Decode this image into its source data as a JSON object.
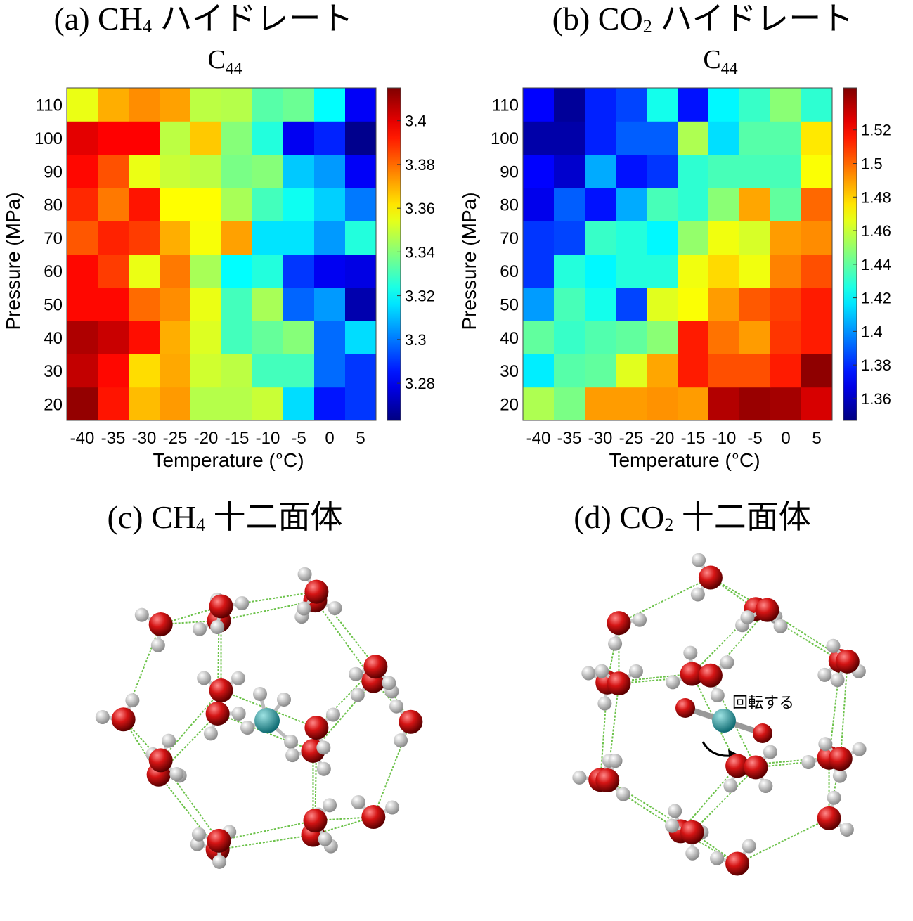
{
  "panels": {
    "a": {
      "title_prefix": "(a) CH",
      "title_sub": "4",
      "title_suffix": " ハイドレート",
      "subtitle_main": "C",
      "subtitle_sub": "44"
    },
    "b": {
      "title_prefix": "(b)  CO",
      "title_sub": "2",
      "title_suffix": " ハイドレート",
      "subtitle_main": "C",
      "subtitle_sub": "44"
    },
    "c": {
      "title_prefix": "(c) CH",
      "title_sub": "4",
      "title_suffix": " 十二面体"
    },
    "d": {
      "title_prefix": "(d) CO",
      "title_sub": "2",
      "title_suffix": " 十二面体",
      "annotation": "回転する"
    }
  },
  "chart_data": [
    {
      "type": "heatmap",
      "title": "C44",
      "xlabel": "Temperature (°C)",
      "ylabel": "Pressure (MPa)",
      "x": [
        -40,
        -35,
        -30,
        -25,
        -20,
        -15,
        -10,
        -5,
        0,
        5
      ],
      "x_tick_labels": [
        "-40",
        "-35",
        "-30",
        "-25",
        "-20",
        "-15",
        "-10",
        "-5",
        "0",
        "5"
      ],
      "y": [
        20,
        30,
        40,
        50,
        60,
        70,
        80,
        90,
        100,
        110
      ],
      "y_tick_labels": [
        "20",
        "30",
        "40",
        "50",
        "60",
        "70",
        "80",
        "90",
        "100",
        "110"
      ],
      "colorbar_ticks": [
        3.28,
        3.3,
        3.32,
        3.34,
        3.36,
        3.38,
        3.4
      ],
      "colorbar_tick_labels": [
        "3.28",
        "3.3",
        "3.32",
        "3.34",
        "3.36",
        "3.38",
        "3.4"
      ],
      "clim": [
        3.263,
        3.415
      ],
      "colormap": "jet",
      "values": [
        [
          3.412,
          3.393,
          3.368,
          3.373,
          3.347,
          3.347,
          3.35,
          3.315,
          3.285,
          3.29
        ],
        [
          3.405,
          3.395,
          3.363,
          3.371,
          3.351,
          3.348,
          3.33,
          3.33,
          3.298,
          3.29
        ],
        [
          3.408,
          3.404,
          3.394,
          3.37,
          3.353,
          3.33,
          3.335,
          3.34,
          3.298,
          3.315
        ],
        [
          3.395,
          3.395,
          3.38,
          3.375,
          3.355,
          3.33,
          3.345,
          3.297,
          3.305,
          3.27
        ],
        [
          3.395,
          3.387,
          3.355,
          3.378,
          3.345,
          3.32,
          3.325,
          3.29,
          3.28,
          3.278
        ],
        [
          3.383,
          3.391,
          3.387,
          3.37,
          3.357,
          3.372,
          3.316,
          3.316,
          3.305,
          3.325
        ],
        [
          3.39,
          3.378,
          3.393,
          3.358,
          3.358,
          3.345,
          3.33,
          3.322,
          3.313,
          3.3
        ],
        [
          3.395,
          3.384,
          3.355,
          3.35,
          3.348,
          3.338,
          3.34,
          3.312,
          3.305,
          3.281
        ],
        [
          3.4,
          3.396,
          3.396,
          3.348,
          3.366,
          3.34,
          3.325,
          3.28,
          3.287,
          3.265
        ],
        [
          3.355,
          3.37,
          3.375,
          3.372,
          3.348,
          3.347,
          3.333,
          3.336,
          3.32,
          3.281
        ]
      ]
    },
    {
      "type": "heatmap",
      "title": "C44",
      "xlabel": "Temperature (°C)",
      "ylabel": "Pressure (MPa)",
      "x": [
        -40,
        -35,
        -30,
        -25,
        -20,
        -15,
        -10,
        -5,
        0,
        5
      ],
      "x_tick_labels": [
        "-40",
        "-35",
        "-30",
        "-25",
        "-20",
        "-15",
        "-10",
        "-5",
        "0",
        "5"
      ],
      "y": [
        20,
        30,
        40,
        50,
        60,
        70,
        80,
        90,
        100,
        110
      ],
      "y_tick_labels": [
        "20",
        "30",
        "40",
        "50",
        "60",
        "70",
        "80",
        "90",
        "100",
        "110"
      ],
      "colorbar_ticks": [
        1.36,
        1.38,
        1.4,
        1.42,
        1.44,
        1.46,
        1.48,
        1.5,
        1.52
      ],
      "colorbar_tick_labels": [
        "1.36",
        "1.38",
        "1.4",
        "1.42",
        "1.44",
        "1.46",
        "1.48",
        "1.5",
        "1.52"
      ],
      "clim": [
        1.347,
        1.545
      ],
      "colormap": "jet",
      "values": [
        [
          1.455,
          1.445,
          1.49,
          1.49,
          1.492,
          1.49,
          1.535,
          1.54,
          1.538,
          1.528
        ],
        [
          1.418,
          1.438,
          1.44,
          1.465,
          1.488,
          1.515,
          1.505,
          1.505,
          1.515,
          1.542
        ],
        [
          1.44,
          1.432,
          1.437,
          1.44,
          1.448,
          1.515,
          1.498,
          1.49,
          1.51,
          1.515
        ],
        [
          1.402,
          1.435,
          1.425,
          1.385,
          1.465,
          1.47,
          1.49,
          1.503,
          1.508,
          1.515
        ],
        [
          1.382,
          1.428,
          1.42,
          1.428,
          1.428,
          1.468,
          1.478,
          1.468,
          1.495,
          1.505
        ],
        [
          1.382,
          1.385,
          1.432,
          1.428,
          1.42,
          1.45,
          1.468,
          1.463,
          1.49,
          1.493
        ],
        [
          1.368,
          1.39,
          1.375,
          1.405,
          1.435,
          1.43,
          1.448,
          1.488,
          1.44,
          1.5
        ],
        [
          1.372,
          1.362,
          1.405,
          1.375,
          1.382,
          1.43,
          1.435,
          1.435,
          1.435,
          1.47
        ],
        [
          1.355,
          1.355,
          1.378,
          1.39,
          1.39,
          1.455,
          1.415,
          1.438,
          1.438,
          1.475
        ],
        [
          1.372,
          1.352,
          1.378,
          1.385,
          1.425,
          1.375,
          1.42,
          1.432,
          1.448,
          1.43
        ]
      ]
    }
  ]
}
